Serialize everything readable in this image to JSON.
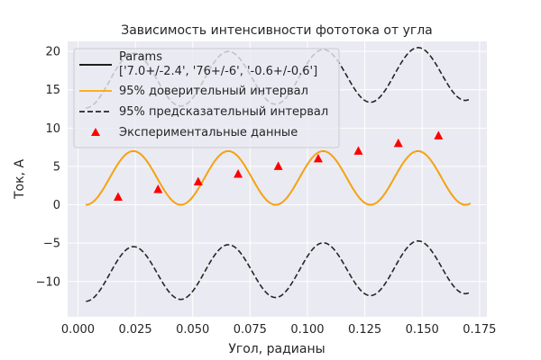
{
  "chart_data": {
    "type": "line",
    "title": "Зависимость интенсивности фототока от угла",
    "xlabel": "Угол, радианы",
    "ylabel": "Ток, А",
    "xlim": [
      -0.0045,
      0.1782
    ],
    "ylim": [
      -14.6,
      21.3
    ],
    "xticks": [
      0.0,
      0.025,
      0.05,
      0.075,
      0.1,
      0.125,
      0.15,
      0.175
    ],
    "xtick_labels": [
      "0.000",
      "0.025",
      "0.050",
      "0.075",
      "0.100",
      "0.125",
      "0.150",
      "0.175"
    ],
    "yticks": [
      -10,
      -5,
      0,
      5,
      10,
      15,
      20
    ],
    "ytick_labels": [
      "−10",
      "−5",
      "0",
      "5",
      "10",
      "15",
      "20"
    ],
    "grid": true,
    "background": "#eaeaf2",
    "legend_position": "top-left",
    "fit": {
      "x_range": [
        0.0035,
        0.171
      ],
      "amplitude": 3.5,
      "frequency": 152,
      "phase": -2.1,
      "offset": 3.5
    },
    "series": [
      {
        "name": "Params\n['7.0+/-2.4', '76+/-6', '-0.6+/-0.6']",
        "label_lines": [
          "Params",
          "['7.0+/-2.4', '76+/-6', '-0.6+/-0.6']"
        ],
        "type": "line",
        "color": "#000000",
        "style": "solid"
      },
      {
        "name": "95% доверительный интервал",
        "label_lines": [
          "95% доверительный интервал"
        ],
        "type": "line",
        "color": "#ffa500",
        "style": "solid"
      },
      {
        "name": "95% предсказательный интервал",
        "label_lines": [
          "95% предсказательный интервал"
        ],
        "type": "line",
        "color": "#262626",
        "style": "dashed",
        "offset_upper": 12.6,
        "offset_lower": -12.6,
        "trend_per_unit": 6
      },
      {
        "name": "Экспериментальные данные",
        "label_lines": [
          "Экспериментальные данные"
        ],
        "type": "scatter",
        "color": "#ff0000",
        "marker": "triangle",
        "points": [
          {
            "x": 0.0175,
            "y": 1
          },
          {
            "x": 0.0349,
            "y": 2
          },
          {
            "x": 0.0524,
            "y": 3
          },
          {
            "x": 0.0698,
            "y": 4
          },
          {
            "x": 0.0873,
            "y": 5
          },
          {
            "x": 0.1047,
            "y": 6
          },
          {
            "x": 0.1222,
            "y": 7
          },
          {
            "x": 0.1396,
            "y": 8
          },
          {
            "x": 0.1571,
            "y": 9
          }
        ]
      }
    ]
  }
}
